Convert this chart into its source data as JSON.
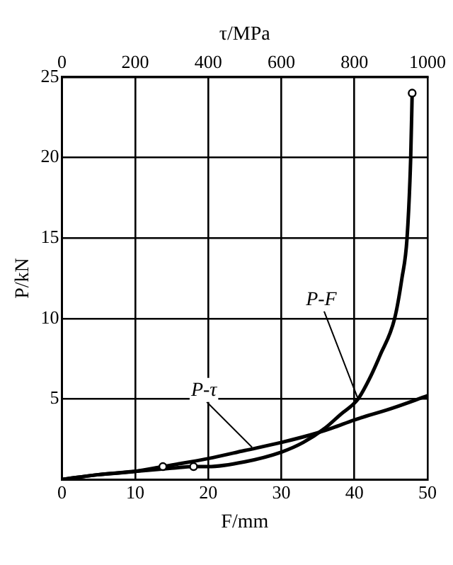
{
  "chart_data": {
    "type": "line",
    "xlabel": "F/mm",
    "x2label": "τ/MPa",
    "ylabel": "P/kN",
    "xlim": [
      0,
      50
    ],
    "xticks": [
      0,
      10,
      20,
      30,
      40,
      50
    ],
    "x2lim": [
      0,
      1000
    ],
    "x2ticks": [
      0,
      200,
      400,
      600,
      800,
      1000
    ],
    "ylim": [
      0,
      25
    ],
    "yticks": [
      {
        "value": 0,
        "label": null
      },
      5,
      10,
      15,
      20,
      25
    ],
    "grid": true,
    "legend": false,
    "marker": "none",
    "line_style": "solid",
    "series": [
      {
        "type": "line",
        "color": "#000000",
        "x": [
          0,
          5,
          10,
          15,
          18,
          20,
          25,
          30,
          33,
          36,
          38,
          40.5,
          42,
          43.5,
          45.5,
          46.5,
          47.2,
          47.7,
          47.9
        ],
        "values": [
          0,
          0.3,
          0.5,
          0.7,
          0.8,
          0.8,
          1.1,
          1.7,
          2.3,
          3.2,
          4,
          5,
          6.2,
          7.7,
          10,
          12.5,
          15,
          20,
          24
        ]
      },
      {
        "type": "line",
        "color": "#000000",
        "axis": "x2",
        "x": [
          0,
          100,
          200,
          276,
          400,
          500,
          600,
          700,
          740,
          800,
          900,
          1000
        ],
        "values": [
          0,
          0.3,
          0.5,
          0.8,
          1.3,
          1.8,
          2.3,
          2.9,
          3.2,
          3.7,
          4.4,
          5.2
        ]
      },
      {
        "type": "scatter",
        "color": "#000000",
        "marker": "circle",
        "x": [
          18,
          47.9
        ],
        "values": [
          0.8,
          24
        ]
      },
      {
        "type": "scatter",
        "color": "#000000",
        "marker": "circle",
        "axis": "x2",
        "x": [
          276
        ],
        "values": [
          0.8
        ]
      }
    ],
    "annotations": [
      {
        "text": "P-F",
        "x": 40.5,
        "y": 5
      },
      {
        "text": "P-τ",
        "x": 26,
        "y": 2
      }
    ]
  }
}
